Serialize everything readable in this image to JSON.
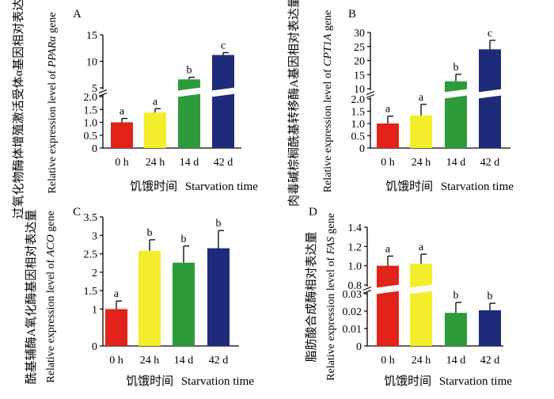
{
  "chart_data": [
    {
      "type": "bar",
      "panel": "A",
      "categories": [
        "0 h",
        "24 h",
        "14 d",
        "42 d"
      ],
      "values": [
        1.0,
        1.38,
        6.6,
        11.2
      ],
      "errors": [
        0.15,
        0.15,
        0.4,
        0.45
      ],
      "sig_letters": [
        "a",
        "a",
        "b",
        "c"
      ],
      "colors": [
        "#e2231a",
        "#f2ee2b",
        "#2e9b3a",
        "#1e2b7a"
      ],
      "ylabel_cn": "过氧化物酶体增殖激活受体α基因相对表达量",
      "ylabel_en_prefix": "Relative expression level of",
      "ylabel_gene": "PPARα",
      "ylabel_en_suffix": "gene",
      "xlabel_cn": "饥饿时间",
      "xlabel_en": "Starvation time",
      "axis_break": true,
      "ylim_lower": [
        0,
        2
      ],
      "ylim_upper": [
        5,
        15
      ],
      "yticks_lower": [
        "0",
        "0.5",
        "1.0",
        "1.5",
        "2.0"
      ],
      "yticks_upper": [
        "5",
        "10",
        "15"
      ]
    },
    {
      "type": "bar",
      "panel": "B",
      "categories": [
        "0 h",
        "24 h",
        "14 d",
        "42 d"
      ],
      "values": [
        1.0,
        1.33,
        12.6,
        24.0
      ],
      "errors": [
        0.3,
        0.45,
        2.5,
        3.2
      ],
      "sig_letters": [
        "a",
        "a",
        "b",
        "c"
      ],
      "colors": [
        "#e2231a",
        "#f2ee2b",
        "#2e9b3a",
        "#1e2b7a"
      ],
      "ylabel_cn": "肉毒碱棕榈酰基转移酶A基因相对表达量",
      "ylabel_en_prefix": "Relative expression level of",
      "ylabel_gene": "CPT1A",
      "ylabel_en_suffix": "gene",
      "xlabel_cn": "饥饿时间",
      "xlabel_en": "Starvation time",
      "axis_break": true,
      "ylim_lower": [
        0,
        2
      ],
      "ylim_upper": [
        10,
        30
      ],
      "yticks_lower": [
        "0",
        "0.5",
        "1.0",
        "1.5",
        "2.0"
      ],
      "yticks_upper": [
        "10",
        "15",
        "20",
        "25",
        "30"
      ]
    },
    {
      "type": "bar",
      "panel": "C",
      "categories": [
        "0 h",
        "24 h",
        "14 d",
        "42 d"
      ],
      "values": [
        1.0,
        2.58,
        2.26,
        2.65
      ],
      "errors": [
        0.22,
        0.3,
        0.45,
        0.48
      ],
      "sig_letters": [
        "a",
        "b",
        "b",
        "b"
      ],
      "colors": [
        "#e2231a",
        "#f2ee2b",
        "#2e9b3a",
        "#1e2b7a"
      ],
      "ylabel_cn": "酰基辅酶A氧化酶基因相对表达量",
      "ylabel_en_prefix": "Relative expression  level of",
      "ylabel_gene": "ACO",
      "ylabel_en_suffix": "gene",
      "xlabel_cn": "饥饿时间",
      "xlabel_en": "Starvation time",
      "axis_break": false,
      "ylim": [
        0,
        3.5
      ],
      "yticks": [
        "0",
        "1",
        "1.5",
        "2",
        "2.5",
        "3",
        "3.5"
      ]
    },
    {
      "type": "bar",
      "panel": "D",
      "categories": [
        "0 h",
        "24 h",
        "14 d",
        "42 d"
      ],
      "values": [
        1.0,
        1.02,
        0.019,
        0.0205
      ],
      "errors": [
        0.1,
        0.1,
        0.006,
        0.004
      ],
      "sig_letters": [
        "a",
        "a",
        "b",
        "b"
      ],
      "colors": [
        "#e2231a",
        "#f2ee2b",
        "#2e9b3a",
        "#1e2b7a"
      ],
      "ylabel_cn": "脂肪酸合成酶相对表达量",
      "ylabel_en_prefix": "Relative expression level of",
      "ylabel_gene": "FAS",
      "ylabel_en_suffix": "gene",
      "xlabel_cn": "饥饿时间",
      "xlabel_en": "Starvation time",
      "axis_break": true,
      "ylim_lower": [
        0,
        0.03
      ],
      "ylim_upper": [
        0.8,
        1.4
      ],
      "yticks_lower": [
        "0",
        "0.01",
        "0.02",
        "0.03"
      ],
      "yticks_upper": [
        "0.8",
        "1.0",
        "1.2",
        "1.4"
      ]
    }
  ]
}
